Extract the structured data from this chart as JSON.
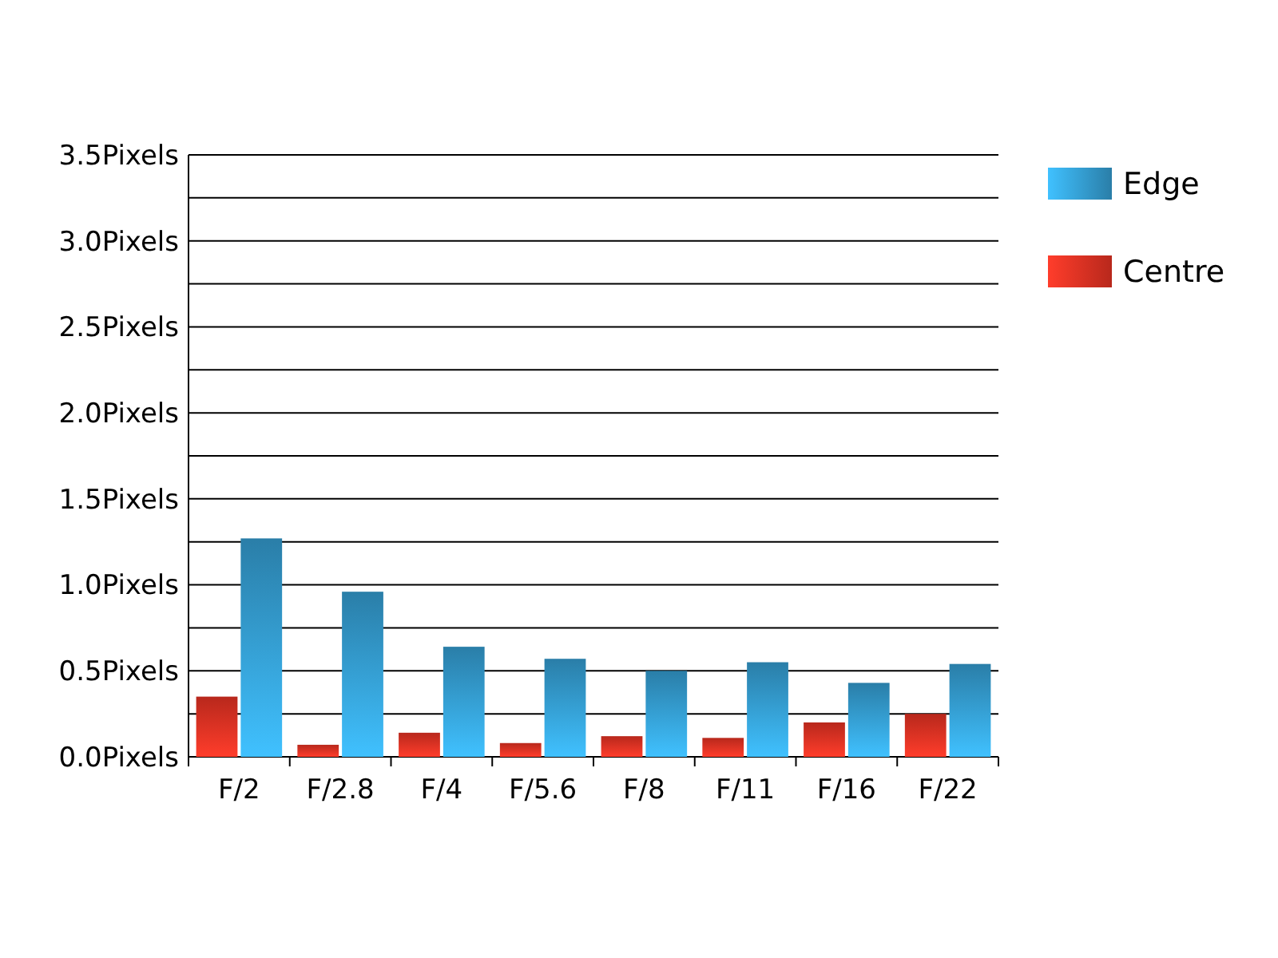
{
  "chart_data": {
    "type": "bar",
    "categories": [
      "F/2",
      "F/2.8",
      "F/4",
      "F/5.6",
      "F/8",
      "F/11",
      "F/16",
      "F/22"
    ],
    "series": [
      {
        "name": "Centre",
        "color": "#b8281c",
        "values": [
          0.35,
          0.07,
          0.14,
          0.08,
          0.12,
          0.11,
          0.2,
          0.25
        ]
      },
      {
        "name": "Edge",
        "color": "#2a7ea8",
        "values": [
          1.27,
          0.96,
          0.64,
          0.57,
          0.5,
          0.55,
          0.43,
          0.54
        ]
      }
    ],
    "ylim": [
      0,
      3.5
    ],
    "yticks": [
      {
        "value": 0,
        "label": "0.0Pixels"
      },
      {
        "value": 0.25,
        "label": null
      },
      {
        "value": 0.5,
        "label": "0.5Pixels"
      },
      {
        "value": 0.75,
        "label": null
      },
      {
        "value": 1,
        "label": "1.0Pixels"
      },
      {
        "value": 1.25,
        "label": null
      },
      {
        "value": 1.5,
        "label": "1.5Pixels"
      },
      {
        "value": 1.75,
        "label": null
      },
      {
        "value": 2,
        "label": "2.0Pixels"
      },
      {
        "value": 2.25,
        "label": null
      },
      {
        "value": 2.5,
        "label": "2.5Pixels"
      },
      {
        "value": 2.75,
        "label": null
      },
      {
        "value": 3,
        "label": "3.0Pixels"
      },
      {
        "value": 3.25,
        "label": null
      },
      {
        "value": 3.5,
        "label": "3.5Pixels"
      }
    ],
    "grid": "y",
    "legend": "top right"
  }
}
